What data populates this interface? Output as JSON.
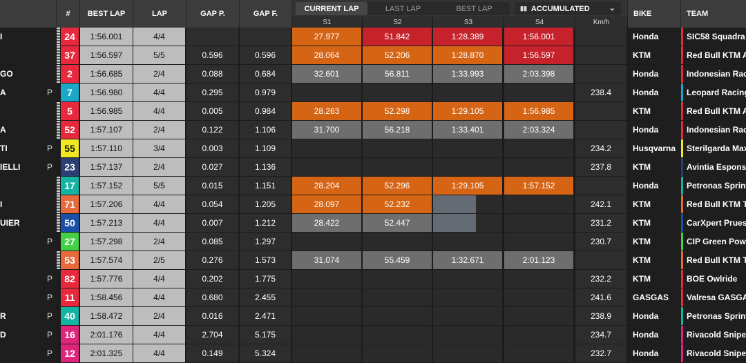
{
  "header": {
    "num": "#",
    "best_lap": "BEST LAP",
    "lap": "LAP",
    "gap_p": "GAP P.",
    "gap_f": "GAP F.",
    "bike": "BIKE",
    "team": "TEAM",
    "tabs": [
      "CURRENT LAP",
      "LAST LAP",
      "BEST LAP"
    ],
    "active_tab": 0,
    "view_select": "ACCUMULATED",
    "sectors": [
      "S1",
      "S2",
      "S3",
      "S4"
    ],
    "kmh": "Km/h"
  },
  "colors": {
    "orange": "#d56414",
    "red": "#c6222b",
    "grey": "#6e6e6e",
    "empty": "#2a2a2a"
  },
  "riders": [
    {
      "name": "I",
      "p": "",
      "num": "24",
      "num_bg": "#e8283c",
      "num_fg": "#ffffff",
      "strip": true,
      "best": "1:56.001",
      "lap": "4/4",
      "gap_p": "",
      "gap_f": "",
      "s": [
        "27.977",
        "51.842",
        "1:28.389",
        "1:56.001"
      ],
      "sc": [
        "orange",
        "red",
        "red",
        "red"
      ],
      "kmh": "",
      "bike": "Honda",
      "team": "SIC58 Squadra",
      "team_color": "#e8283c"
    },
    {
      "name": "",
      "p": "",
      "num": "37",
      "num_bg": "#e8283c",
      "num_fg": "#ffffff",
      "strip": true,
      "best": "1:56.597",
      "lap": "5/5",
      "gap_p": "0.596",
      "gap_f": "0.596",
      "s": [
        "28.064",
        "52.206",
        "1:28.870",
        "1:56.597"
      ],
      "sc": [
        "orange",
        "orange",
        "orange",
        "red"
      ],
      "kmh": "",
      "bike": "KTM",
      "team": "Red Bull KTM A",
      "team_color": "#e8283c"
    },
    {
      "name": "GO",
      "p": "",
      "num": "2",
      "num_bg": "#e8283c",
      "num_fg": "#ffffff",
      "strip": true,
      "best": "1:56.685",
      "lap": "2/4",
      "gap_p": "0.088",
      "gap_f": "0.684",
      "s": [
        "32.601",
        "56.811",
        "1:33.993",
        "2:03.398"
      ],
      "sc": [
        "grey",
        "grey",
        "grey",
        "grey"
      ],
      "kmh": "",
      "bike": "Honda",
      "team": "Indonesian Rac",
      "team_color": "#e8283c"
    },
    {
      "name": "A",
      "p": "P",
      "num": "7",
      "num_bg": "#1aa8c8",
      "num_fg": "#ffffff",
      "strip": false,
      "best": "1:56.980",
      "lap": "4/4",
      "gap_p": "0.295",
      "gap_f": "0.979",
      "s": [
        "",
        "",
        "",
        ""
      ],
      "sc": [
        "empty",
        "empty",
        "empty",
        "empty"
      ],
      "kmh": "238.4",
      "bike": "Honda",
      "team": "Leopard Racing",
      "team_color": "#1aa8c8"
    },
    {
      "name": "",
      "p": "",
      "num": "5",
      "num_bg": "#e8283c",
      "num_fg": "#ffffff",
      "strip": true,
      "best": "1:56.985",
      "lap": "4/4",
      "gap_p": "0.005",
      "gap_f": "0.984",
      "s": [
        "28.263",
        "52.298",
        "1:29.105",
        "1:56.985"
      ],
      "sc": [
        "orange",
        "orange",
        "orange",
        "orange"
      ],
      "kmh": "",
      "bike": "KTM",
      "team": "Red Bull KTM A",
      "team_color": "#e8283c"
    },
    {
      "name": "A",
      "p": "",
      "num": "52",
      "num_bg": "#e8283c",
      "num_fg": "#ffffff",
      "strip": true,
      "best": "1:57.107",
      "lap": "2/4",
      "gap_p": "0.122",
      "gap_f": "1.106",
      "s": [
        "31.700",
        "56.218",
        "1:33.401",
        "2:03.324"
      ],
      "sc": [
        "grey",
        "grey",
        "grey",
        "grey"
      ],
      "kmh": "",
      "bike": "Honda",
      "team": "Indonesian Rac",
      "team_color": "#e8283c"
    },
    {
      "name": "TI",
      "p": "P",
      "num": "55",
      "num_bg": "#f0e823",
      "num_fg": "#111111",
      "strip": false,
      "best": "1:57.110",
      "lap": "3/4",
      "gap_p": "0.003",
      "gap_f": "1.109",
      "s": [
        "",
        "",
        "",
        ""
      ],
      "sc": [
        "empty",
        "empty",
        "empty",
        "empty"
      ],
      "kmh": "234.2",
      "bike": "Husqvarna",
      "team": "Sterilgarda Max",
      "team_color": "#f0e823"
    },
    {
      "name": "IELLI",
      "p": "P",
      "num": "23",
      "num_bg": "#2c3f73",
      "num_fg": "#ffffff",
      "strip": false,
      "best": "1:57.137",
      "lap": "2/4",
      "gap_p": "0.027",
      "gap_f": "1.136",
      "s": [
        "",
        "",
        "",
        ""
      ],
      "sc": [
        "empty",
        "empty",
        "empty",
        "empty"
      ],
      "kmh": "237.8",
      "bike": "KTM",
      "team": "Avintia Esponso",
      "team_color": "#2c3f73"
    },
    {
      "name": "",
      "p": "",
      "num": "17",
      "num_bg": "#14b4a4",
      "num_fg": "#ffffff",
      "strip": true,
      "best": "1:57.152",
      "lap": "5/5",
      "gap_p": "0.015",
      "gap_f": "1.151",
      "s": [
        "28.204",
        "52.296",
        "1:29.105",
        "1:57.152"
      ],
      "sc": [
        "orange",
        "orange",
        "orange",
        "orange"
      ],
      "kmh": "",
      "bike": "Honda",
      "team": "Petronas Sprint",
      "team_color": "#14b4a4"
    },
    {
      "name": "I",
      "p": "",
      "num": "71",
      "num_bg": "#e86a3a",
      "num_fg": "#ffffff",
      "strip": true,
      "best": "1:57.206",
      "lap": "4/4",
      "gap_p": "0.054",
      "gap_f": "1.205",
      "s": [
        "28.097",
        "52.232",
        "",
        ""
      ],
      "sc": [
        "orange",
        "orange",
        "partial",
        "empty"
      ],
      "kmh": "242.1",
      "bike": "KTM",
      "team": "Red Bull KTM T",
      "team_color": "#e86a3a"
    },
    {
      "name": "UIER",
      "p": "",
      "num": "50",
      "num_bg": "#1a4fa8",
      "num_fg": "#ffffff",
      "strip": true,
      "best": "1:57.213",
      "lap": "4/4",
      "gap_p": "0.007",
      "gap_f": "1.212",
      "s": [
        "28.422",
        "52.447",
        "",
        ""
      ],
      "sc": [
        "grey",
        "grey",
        "partial",
        "empty"
      ],
      "kmh": "231.2",
      "bike": "KTM",
      "team": "CarXpert Pruest",
      "team_color": "#1a4fa8"
    },
    {
      "name": "",
      "p": "P",
      "num": "27",
      "num_bg": "#44d044",
      "num_fg": "#ffffff",
      "strip": false,
      "best": "1:57.298",
      "lap": "2/4",
      "gap_p": "0.085",
      "gap_f": "1.297",
      "s": [
        "",
        "",
        "",
        ""
      ],
      "sc": [
        "empty",
        "empty",
        "empty",
        "empty"
      ],
      "kmh": "230.7",
      "bike": "KTM",
      "team": "CIP Green Powe",
      "team_color": "#44d044"
    },
    {
      "name": "",
      "p": "",
      "num": "53",
      "num_bg": "#e86a3a",
      "num_fg": "#ffffff",
      "strip": true,
      "best": "1:57.574",
      "lap": "2/5",
      "gap_p": "0.276",
      "gap_f": "1.573",
      "s": [
        "31.074",
        "55.459",
        "1:32.671",
        "2:01.123"
      ],
      "sc": [
        "grey",
        "grey",
        "grey",
        "grey"
      ],
      "kmh": "",
      "bike": "KTM",
      "team": "Red Bull KTM T",
      "team_color": "#e86a3a"
    },
    {
      "name": "",
      "p": "P",
      "num": "82",
      "num_bg": "#e8283c",
      "num_fg": "#ffffff",
      "strip": false,
      "best": "1:57.776",
      "lap": "4/4",
      "gap_p": "0.202",
      "gap_f": "1.775",
      "s": [
        "",
        "",
        "",
        ""
      ],
      "sc": [
        "empty",
        "empty",
        "empty",
        "empty"
      ],
      "kmh": "232.2",
      "bike": "KTM",
      "team": "BOE Owlride",
      "team_color": "#e8283c"
    },
    {
      "name": "",
      "p": "P",
      "num": "11",
      "num_bg": "#e8283c",
      "num_fg": "#ffffff",
      "strip": false,
      "best": "1:58.456",
      "lap": "4/4",
      "gap_p": "0.680",
      "gap_f": "2.455",
      "s": [
        "",
        "",
        "",
        ""
      ],
      "sc": [
        "empty",
        "empty",
        "empty",
        "empty"
      ],
      "kmh": "241.6",
      "bike": "GASGAS",
      "team": "Valresa GASGA",
      "team_color": "#e8283c"
    },
    {
      "name": "R",
      "p": "P",
      "num": "40",
      "num_bg": "#14b4a4",
      "num_fg": "#ffffff",
      "strip": false,
      "best": "1:58.472",
      "lap": "2/4",
      "gap_p": "0.016",
      "gap_f": "2.471",
      "s": [
        "",
        "",
        "",
        ""
      ],
      "sc": [
        "empty",
        "empty",
        "empty",
        "empty"
      ],
      "kmh": "238.9",
      "bike": "Honda",
      "team": "Petronas Sprint",
      "team_color": "#14b4a4"
    },
    {
      "name": "D",
      "p": "P",
      "num": "16",
      "num_bg": "#e0247c",
      "num_fg": "#ffffff",
      "strip": false,
      "best": "2:01.176",
      "lap": "4/4",
      "gap_p": "2.704",
      "gap_f": "5.175",
      "s": [
        "",
        "",
        "",
        ""
      ],
      "sc": [
        "empty",
        "empty",
        "empty",
        "empty"
      ],
      "kmh": "234.7",
      "bike": "Honda",
      "team": "Rivacold Sniper",
      "team_color": "#e0247c"
    },
    {
      "name": "",
      "p": "P",
      "num": "12",
      "num_bg": "#e0247c",
      "num_fg": "#ffffff",
      "strip": false,
      "best": "2:01.325",
      "lap": "4/4",
      "gap_p": "0.149",
      "gap_f": "5.324",
      "s": [
        "",
        "",
        "",
        ""
      ],
      "sc": [
        "empty",
        "empty",
        "empty",
        "empty"
      ],
      "kmh": "232.7",
      "bike": "Honda",
      "team": "Rivacold Sniper",
      "team_color": "#e0247c"
    }
  ]
}
